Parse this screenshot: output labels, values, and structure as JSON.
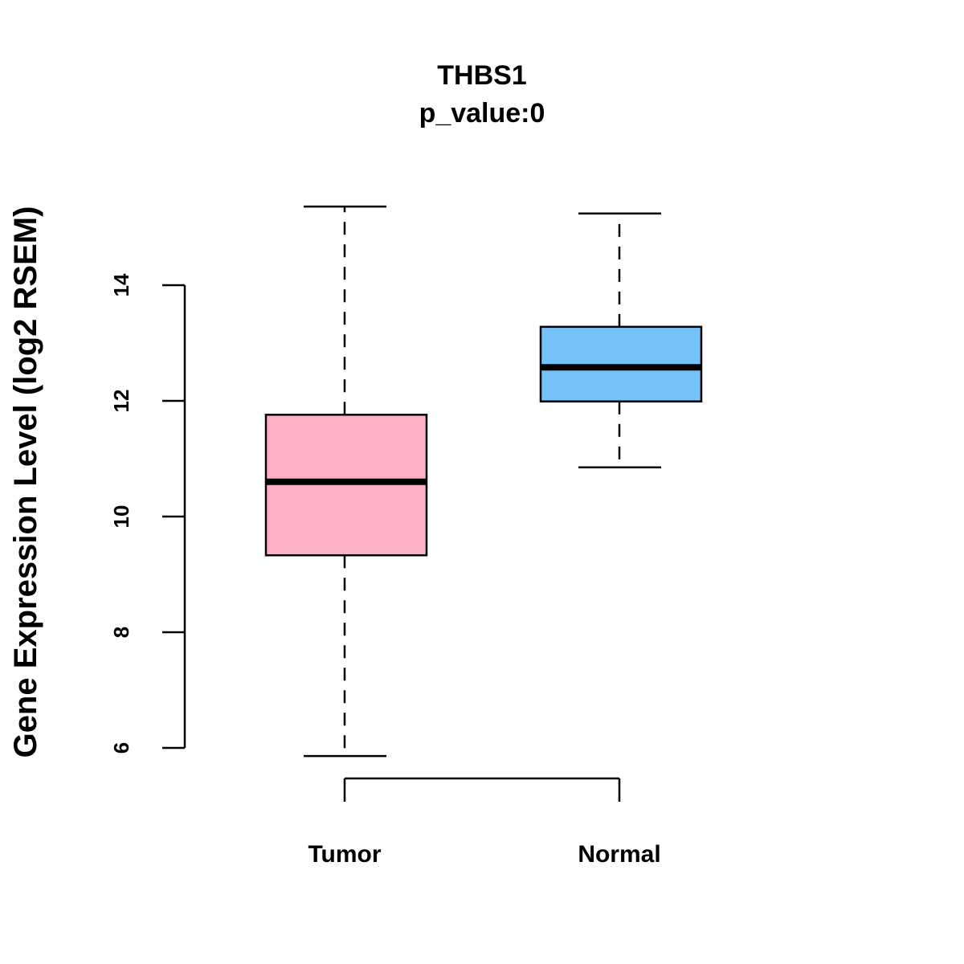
{
  "chart_data": {
    "type": "box",
    "title": "THBS1",
    "subtitle": "p_value:0",
    "xlabel": "",
    "ylabel": "Gene Expression Level (log2 RSEM)",
    "ylim": [
      5.5,
      16
    ],
    "yticks": [
      6,
      8,
      10,
      12,
      14
    ],
    "categories": [
      "Tumor",
      "Normal"
    ],
    "colors": [
      "#FBB1C3",
      "#75C1F9"
    ],
    "series": [
      {
        "name": "Tumor",
        "whisker_low": 5.86,
        "q1": 9.33,
        "median": 10.6,
        "q3": 11.76,
        "whisker_high": 15.36
      },
      {
        "name": "Normal",
        "whisker_low": 10.85,
        "q1": 11.99,
        "median": 12.58,
        "q3": 13.28,
        "whisker_high": 15.24
      }
    ],
    "grid": false
  }
}
